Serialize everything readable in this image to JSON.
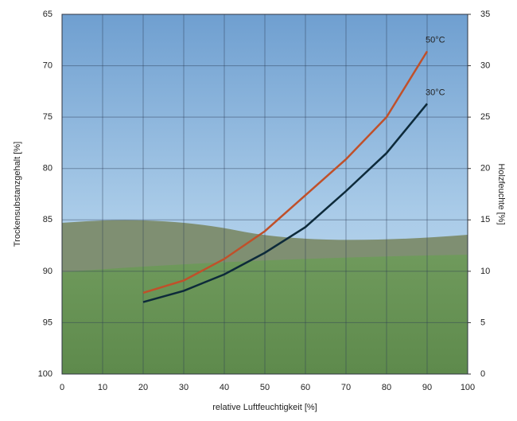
{
  "chart_data": {
    "type": "line",
    "xlabel": "relative Luftfeuchtigkeit [%]",
    "ylabel": "Trockensubstanzgehalt [%]",
    "y2label": "Holzfeuchte [%]",
    "x": [
      20,
      30,
      40,
      50,
      60,
      70,
      80,
      90
    ],
    "series": [
      {
        "name": "50°C",
        "color": "#c0502a",
        "axis": "y2",
        "values": [
          7.9,
          9.1,
          11.2,
          13.9,
          17.4,
          20.9,
          25,
          31.4
        ]
      },
      {
        "name": "30°C",
        "color": "#0d2a3a",
        "axis": "y2",
        "values": [
          7.0,
          8.1,
          9.7,
          11.8,
          14.3,
          17.8,
          21.5,
          26.3
        ]
      }
    ],
    "xlim": [
      0,
      100
    ],
    "xticks": [
      0,
      10,
      20,
      30,
      40,
      50,
      60,
      70,
      80,
      90,
      100
    ],
    "ylim": [
      100,
      65
    ],
    "yticks": [
      100,
      95,
      90,
      85,
      80,
      75,
      70,
      65
    ],
    "y2lim": [
      0,
      35
    ],
    "y2ticks": [
      0,
      5,
      10,
      15,
      20,
      25,
      30,
      35
    ],
    "grid": true
  }
}
